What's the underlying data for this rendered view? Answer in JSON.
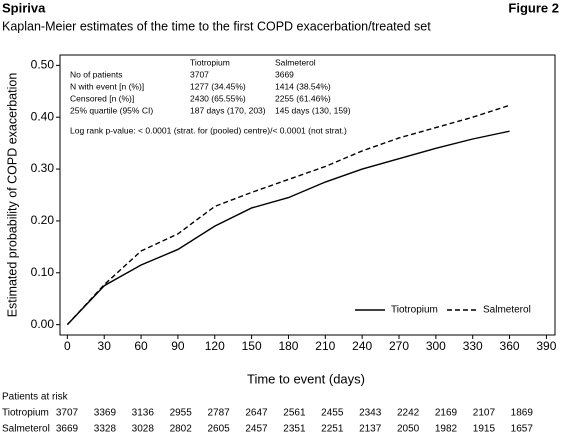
{
  "header": {
    "brand": "Spiriva",
    "figure": "Figure 2"
  },
  "chart_data": {
    "type": "line",
    "title": "Kaplan-Meier estimates of the time to the first COPD exacerbation/treated set",
    "x_label": "Time to event (days)",
    "y_label": "Estimated probability of COPD exacerbation",
    "x": [
      0,
      30,
      60,
      90,
      120,
      150,
      180,
      210,
      240,
      270,
      300,
      330,
      360
    ],
    "series": [
      {
        "name": "Tiotropium",
        "color": "#000000",
        "line_style": "solid",
        "values": [
          0,
          0.075,
          0.115,
          0.145,
          0.19,
          0.225,
          0.245,
          0.275,
          0.3,
          0.32,
          0.34,
          0.358,
          0.373
        ]
      },
      {
        "name": "Salmeterol",
        "color": "#000000",
        "line_style": "dashed",
        "values": [
          0,
          0.077,
          0.142,
          0.175,
          0.228,
          0.255,
          0.28,
          0.305,
          0.335,
          0.36,
          0.38,
          0.4,
          0.423
        ]
      }
    ],
    "xlim": [
      -6,
      397
    ],
    "xticks": [
      0,
      30,
      60,
      90,
      120,
      150,
      180,
      210,
      240,
      270,
      300,
      330,
      360,
      390
    ],
    "ylim": [
      -0.02,
      0.52
    ],
    "yticks": [
      {
        "value": 0,
        "label": "0.00"
      },
      {
        "value": 0.1,
        "label": "0.10"
      },
      {
        "value": 0.2,
        "label": "0.20"
      },
      {
        "value": 0.3,
        "label": "0.30"
      },
      {
        "value": 0.4,
        "label": "0.40"
      },
      {
        "value": 0.5,
        "label": "0.50"
      }
    ],
    "legend": "lower right",
    "summary_table": {
      "columns": [
        "Tiotropium",
        "Salmeterol"
      ],
      "rows": [
        [
          "No of patients",
          "3707",
          "3669"
        ],
        [
          "N with event [n (%)]",
          "1277 (34.45%)",
          "1414 (38.54%)"
        ],
        [
          "Censored [n (%)]",
          "2430 (65.55%)",
          "2255 (61.46%)"
        ],
        [
          "25% quartile (95% CI)",
          "187 days (170, 203)",
          "145 days (130, 159)"
        ]
      ],
      "note": "Log rank p-value: < 0.0001 (strat. for (pooled) centre)/< 0.0001 (not strat.)"
    },
    "at_risk": {
      "title": "Patients at risk",
      "rows": [
        {
          "name": "Tiotropium",
          "values": [
            3707,
            3369,
            3136,
            2955,
            2787,
            2647,
            2561,
            2455,
            2343,
            2242,
            2169,
            2107,
            1869
          ]
        },
        {
          "name": "Salmeterol",
          "values": [
            3669,
            3328,
            3028,
            2802,
            2605,
            2457,
            2351,
            2251,
            2137,
            2050,
            1982,
            1915,
            1657
          ]
        }
      ]
    }
  }
}
